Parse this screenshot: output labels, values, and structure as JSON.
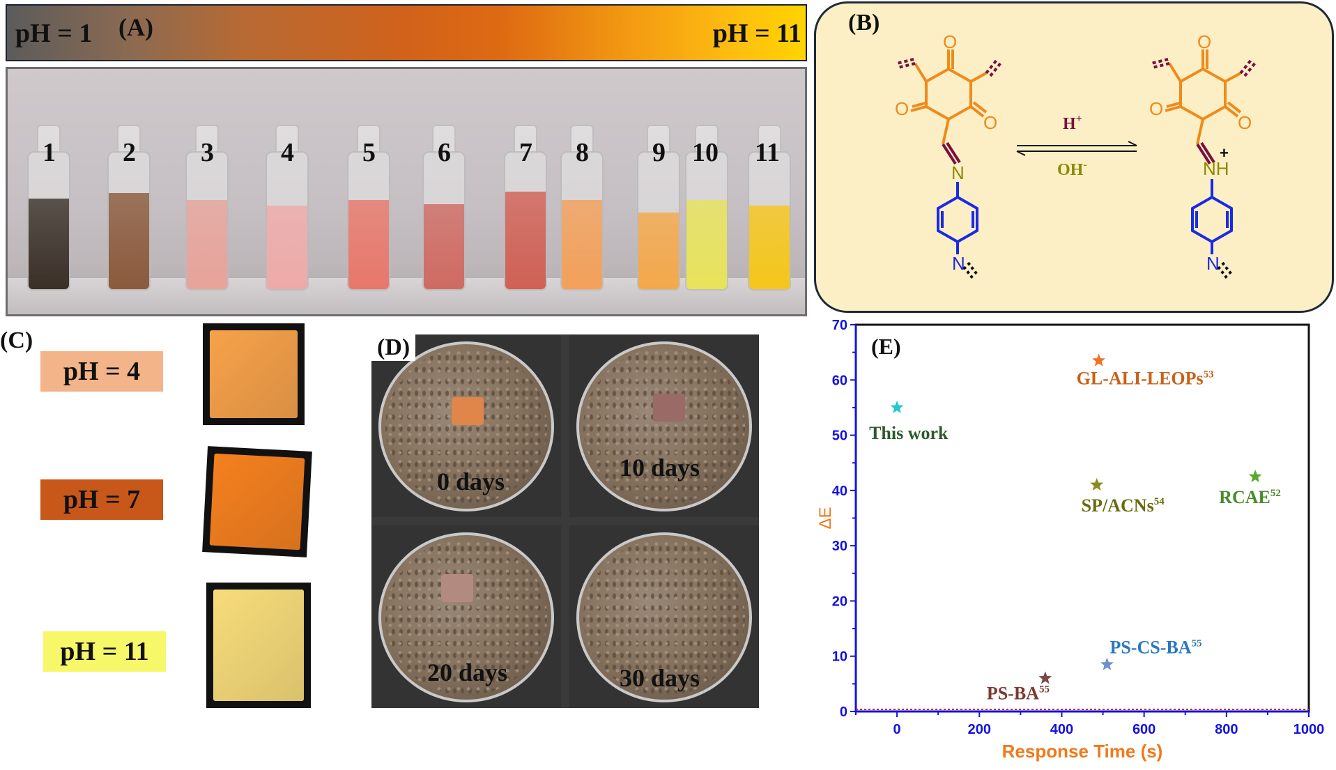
{
  "panel_a": {
    "label": "(A)",
    "ph_start": "pH = 1",
    "ph_end": "pH = 11",
    "vials": [
      {
        "num": "1",
        "color": "#3a3028"
      },
      {
        "num": "2",
        "color": "#8b5a3c"
      },
      {
        "num": "3",
        "color": "#e7a39a"
      },
      {
        "num": "4",
        "color": "#eeaaa8"
      },
      {
        "num": "5",
        "color": "#e8776a"
      },
      {
        "num": "6",
        "color": "#cf6a62"
      },
      {
        "num": "7",
        "color": "#d06055"
      },
      {
        "num": "8",
        "color": "#f3a05a"
      },
      {
        "num": "9",
        "color": "#f4a84a"
      },
      {
        "num": "10",
        "color": "#e8e35a"
      },
      {
        "num": "11",
        "color": "#f5c61a"
      }
    ]
  },
  "panel_b": {
    "label": "(B)",
    "forward": "H",
    "forward_sup": "+",
    "reverse": "OH",
    "reverse_sup": "-",
    "n_label": "N",
    "nh_label": "NH",
    "charge": "+",
    "o_label": "O",
    "colors": {
      "ring": "#f08a1a",
      "amine": "#1a2ae6",
      "linker": "#7a1040",
      "n": "#8a8a00"
    }
  },
  "panel_c": {
    "label": "(C)",
    "items": [
      {
        "ph": "pH = 4",
        "box_color": "#f3b48a",
        "film_color": "#f7a24a"
      },
      {
        "ph": "pH = 7",
        "box_color": "#c8581a",
        "film_color": "#f5801f"
      },
      {
        "ph": "pH = 11",
        "box_color": "#f7f76a",
        "film_color": "#f8dc7a"
      }
    ]
  },
  "panel_d": {
    "label": "(D)",
    "dishes": [
      {
        "days": "0 days",
        "sample_color": "#e0864a"
      },
      {
        "days": "10 days",
        "sample_color": "#9a6a66"
      },
      {
        "days": "20 days",
        "sample_color": "#b28a80"
      },
      {
        "days": "30 days",
        "sample_color": ""
      }
    ]
  },
  "chart_data": {
    "type": "scatter",
    "panel_label": "(E)",
    "xlabel": "Response Time (s)",
    "ylabel": "ΔE",
    "xlim": [
      -100,
      1000
    ],
    "ylim": [
      0,
      70
    ],
    "xticks": [
      0,
      200,
      400,
      600,
      800,
      1000
    ],
    "yticks": [
      0,
      10,
      20,
      30,
      40,
      50,
      60,
      70
    ],
    "grid": false,
    "axis_color": "#1212e0",
    "xlabel_color": "#f07a1a",
    "ylabel_color": "#f07a1a",
    "points": [
      {
        "name": "This work",
        "sup": "",
        "x": 0,
        "y": 55,
        "marker_color": "#22c8d0",
        "label_color": "#2c5a2c"
      },
      {
        "name": "GL-ALI-LEOPs",
        "sup": "53",
        "x": 490,
        "y": 63.5,
        "marker_color": "#f07020",
        "label_color": "#c86018"
      },
      {
        "name": "SP/ACNs",
        "sup": "54",
        "x": 485,
        "y": 41,
        "marker_color": "#8a8a20",
        "label_color": "#6a6a10"
      },
      {
        "name": "RCAE",
        "sup": "52",
        "x": 870,
        "y": 42.5,
        "marker_color": "#5aa830",
        "label_color": "#4a8a2a"
      },
      {
        "name": "PS-CS-BA",
        "sup": "55",
        "x": 510,
        "y": 8.5,
        "marker_color": "#6a8ed0",
        "label_color": "#2a78c0"
      },
      {
        "name": "PS-BA",
        "sup": "55",
        "x": 360,
        "y": 6,
        "marker_color": "#7a4a44",
        "label_color": "#7a3a30"
      }
    ]
  }
}
